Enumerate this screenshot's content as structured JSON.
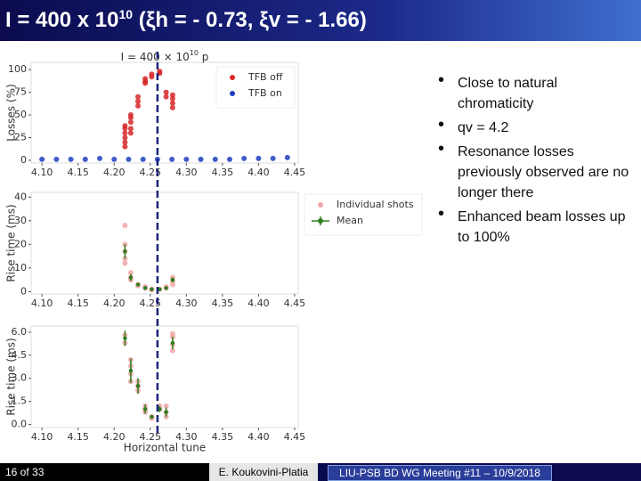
{
  "header": {
    "title": [
      "I = 400 x 10",
      "10",
      " (ξh = - 0.73, ξv = - 1.66)"
    ]
  },
  "tune_marker": 4.26,
  "chart_data": [
    {
      "type": "scatter",
      "title": [
        "I = 400 × 10",
        "10",
        " p"
      ],
      "ylabel": "Losses (%)",
      "xlim": [
        4.085,
        4.455
      ],
      "xticks": [
        {
          "value": 4.1,
          "label": "4.10"
        },
        4.15,
        {
          "value": 4.2,
          "label": "4.20"
        },
        4.25,
        {
          "value": 4.3,
          "label": "4.30"
        },
        4.35,
        {
          "value": 4.4,
          "label": "4.40"
        },
        4.45
      ],
      "ylim": [
        -3,
        108
      ],
      "yticks": [
        0,
        25,
        50,
        75,
        100
      ],
      "legend": "upper right",
      "series": [
        {
          "name": "TFB off",
          "color": "#d62728",
          "x": [
            4.215,
            4.215,
            4.215,
            4.215,
            4.215,
            4.215,
            4.223,
            4.223,
            4.223,
            4.223,
            4.223,
            4.233,
            4.233,
            4.233,
            4.243,
            4.243,
            4.243,
            4.252,
            4.252,
            4.263,
            4.263,
            4.272,
            4.272,
            4.281,
            4.281,
            4.281,
            4.281
          ],
          "values": [
            15,
            20,
            25,
            30,
            35,
            38,
            30,
            35,
            42,
            47,
            50,
            60,
            65,
            70,
            85,
            87,
            90,
            92,
            95,
            96,
            98,
            70,
            75,
            58,
            63,
            68,
            72
          ]
        },
        {
          "name": "TFB on",
          "color": "#1f3fbf",
          "x": [
            4.1,
            4.12,
            4.14,
            4.16,
            4.18,
            4.2,
            4.22,
            4.24,
            4.26,
            4.28,
            4.3,
            4.32,
            4.34,
            4.36,
            4.38,
            4.4,
            4.42,
            4.44
          ],
          "values": [
            1,
            1,
            1,
            1,
            2,
            1,
            1,
            1,
            1,
            1,
            1,
            1,
            1,
            1,
            2,
            2,
            2,
            3
          ]
        }
      ]
    },
    {
      "type": "errorbar",
      "ylabel": "Rise time (ms)",
      "xlim": [
        4.085,
        4.455
      ],
      "xticks": [
        {
          "value": 4.1,
          "label": "4.10"
        },
        4.15,
        {
          "value": 4.2,
          "label": "4.20"
        },
        4.25,
        {
          "value": 4.3,
          "label": "4.30"
        },
        4.35,
        {
          "value": 4.4,
          "label": "4.40"
        },
        4.45
      ],
      "ylim": [
        -1,
        42
      ],
      "yticks": [
        0,
        10,
        20,
        30,
        40
      ],
      "legend": "outside right",
      "series": [
        {
          "name": "Individual shots",
          "color": "#f2a7a7",
          "x": [
            4.215,
            4.215,
            4.215,
            4.215,
            4.215,
            4.223,
            4.223,
            4.223,
            4.233,
            4.233,
            4.243,
            4.243,
            4.252,
            4.252,
            4.263,
            4.272,
            4.272,
            4.281,
            4.281,
            4.281
          ],
          "values": [
            28,
            20,
            17,
            14,
            12,
            8,
            6,
            5,
            3,
            2.5,
            2,
            1.5,
            1,
            0.8,
            1,
            1.5,
            2,
            6,
            4.5,
            3
          ]
        },
        {
          "name": "Mean",
          "color": "#2e7d1e",
          "x": [
            4.215,
            4.223,
            4.233,
            4.243,
            4.252,
            4.263,
            4.272,
            4.281
          ],
          "values": [
            17,
            6,
            3,
            1.5,
            1,
            1,
            1.5,
            5
          ],
          "errors": [
            3,
            1.5,
            0.5,
            0.3,
            0.2,
            0.2,
            0.3,
            1
          ]
        }
      ]
    },
    {
      "type": "errorbar",
      "ylabel": "Rise time (ms)",
      "xlabel": "Horizontal tune",
      "xlim": [
        4.085,
        4.455
      ],
      "xticks": [
        {
          "value": 4.1,
          "label": "4.10"
        },
        4.15,
        {
          "value": 4.2,
          "label": "4.20"
        },
        4.25,
        {
          "value": 4.3,
          "label": "4.30"
        },
        4.35,
        {
          "value": 4.4,
          "label": "4.40"
        },
        4.45
      ],
      "ylim": [
        -0.2,
        6.4
      ],
      "yticks": [
        {
          "value": 0,
          "label": "0.0"
        },
        1.5,
        {
          "value": 3,
          "label": "3.0"
        },
        4.5,
        {
          "value": 6,
          "label": "6.0"
        }
      ],
      "series": [
        {
          "color": "#f2a7a7",
          "x": [
            4.215,
            4.215,
            4.223,
            4.223,
            4.223,
            4.223,
            4.233,
            4.233,
            4.233,
            4.243,
            4.243,
            4.243,
            4.252,
            4.252,
            4.263,
            4.263,
            4.272,
            4.272,
            4.272,
            4.281,
            4.281,
            4.281,
            4.281
          ],
          "values": [
            5.8,
            5.3,
            4.2,
            3.8,
            3.3,
            2.8,
            2.8,
            2.5,
            2.2,
            1.2,
            1,
            0.8,
            0.5,
            0.4,
            1.2,
            1,
            1.2,
            0.8,
            0.5,
            5.9,
            5.7,
            5.2,
            4.8
          ]
        },
        {
          "color": "#2e7d1e",
          "x": [
            4.215,
            4.223,
            4.233,
            4.243,
            4.252,
            4.263,
            4.272,
            4.281
          ],
          "values": [
            5.6,
            3.5,
            2.5,
            1,
            0.5,
            1,
            0.8,
            5.3
          ],
          "errors": [
            0.5,
            0.8,
            0.5,
            0.3,
            0.1,
            0.2,
            0.3,
            0.4
          ]
        }
      ]
    }
  ],
  "bullets": [
    "Close to natural chromaticity",
    "qv = 4.2",
    "Resonance losses previously observed are no longer there",
    "Enhanced beam losses up to 100%"
  ],
  "footer": {
    "page": "16 of 33",
    "author": "E. Koukovini-Platia",
    "meeting": "LIU-PSB BD WG Meeting #11 – 10/9/2018"
  }
}
